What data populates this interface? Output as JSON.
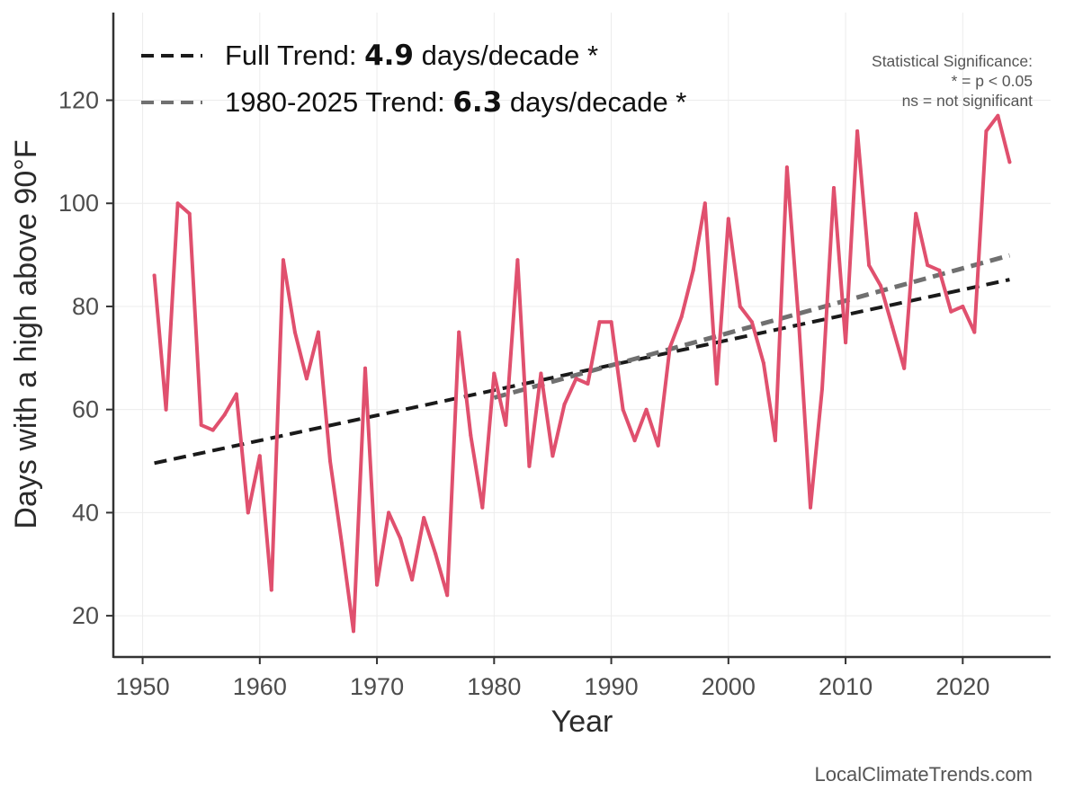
{
  "chart_data": {
    "type": "line",
    "xlabel": "Year",
    "ylabel": "Days with a high above 90°F",
    "xlim": [
      1947.5,
      2027.5
    ],
    "ylim": [
      12,
      137
    ],
    "x_ticks": [
      1950,
      1960,
      1970,
      1980,
      1990,
      2000,
      2010,
      2020
    ],
    "y_ticks": [
      20,
      40,
      60,
      80,
      100,
      120
    ],
    "grid": true,
    "series": [
      {
        "name": "Days with a high above 90°F",
        "color": "#e0506e",
        "x": [
          1951,
          1952,
          1953,
          1954,
          1955,
          1956,
          1957,
          1958,
          1959,
          1960,
          1961,
          1962,
          1963,
          1964,
          1965,
          1966,
          1967,
          1968,
          1969,
          1970,
          1971,
          1972,
          1973,
          1974,
          1975,
          1976,
          1977,
          1978,
          1979,
          1980,
          1981,
          1982,
          1983,
          1984,
          1985,
          1986,
          1987,
          1988,
          1989,
          1990,
          1991,
          1992,
          1993,
          1994,
          1995,
          1996,
          1997,
          1998,
          1999,
          2000,
          2001,
          2002,
          2003,
          2004,
          2005,
          2006,
          2007,
          2008,
          2009,
          2010,
          2011,
          2012,
          2013,
          2014,
          2015,
          2016,
          2017,
          2018,
          2019,
          2020,
          2021,
          2022,
          2023,
          2024
        ],
        "values": [
          86,
          60,
          100,
          98,
          57,
          56,
          59,
          63,
          40,
          51,
          25,
          89,
          75,
          66,
          75,
          50,
          34,
          17,
          68,
          26,
          40,
          35,
          27,
          39,
          32,
          24,
          75,
          55,
          41,
          67,
          57,
          89,
          49,
          67,
          51,
          61,
          66,
          65,
          77,
          77,
          60,
          54,
          60,
          53,
          72,
          78,
          87,
          100,
          65,
          97,
          80,
          77,
          69,
          54,
          107,
          77,
          41,
          64,
          103,
          73,
          114,
          88,
          84,
          76,
          68,
          98,
          88,
          87,
          79,
          80,
          75,
          114,
          117,
          108
        ]
      }
    ],
    "trends": [
      {
        "name": "Full Trend",
        "label_prefix": "Full Trend: ",
        "rate": "4.9",
        "label_suffix": " days/decade *",
        "color": "#1a1a1a",
        "x_start": 1951,
        "y_start": 49.6,
        "x_end": 2024,
        "y_end": 85.2
      },
      {
        "name": "1980-2025 Trend",
        "label_prefix": "1980-2025 Trend: ",
        "rate": "6.3",
        "label_suffix": " days/decade *",
        "color": "#707070",
        "x_start": 1980,
        "y_start": 62.3,
        "x_end": 2024,
        "y_end": 89.9
      }
    ],
    "significance_note": [
      "Statistical Significance:",
      "* = p < 0.05",
      "ns = not significant"
    ],
    "source": "LocalClimateTrends.com"
  }
}
